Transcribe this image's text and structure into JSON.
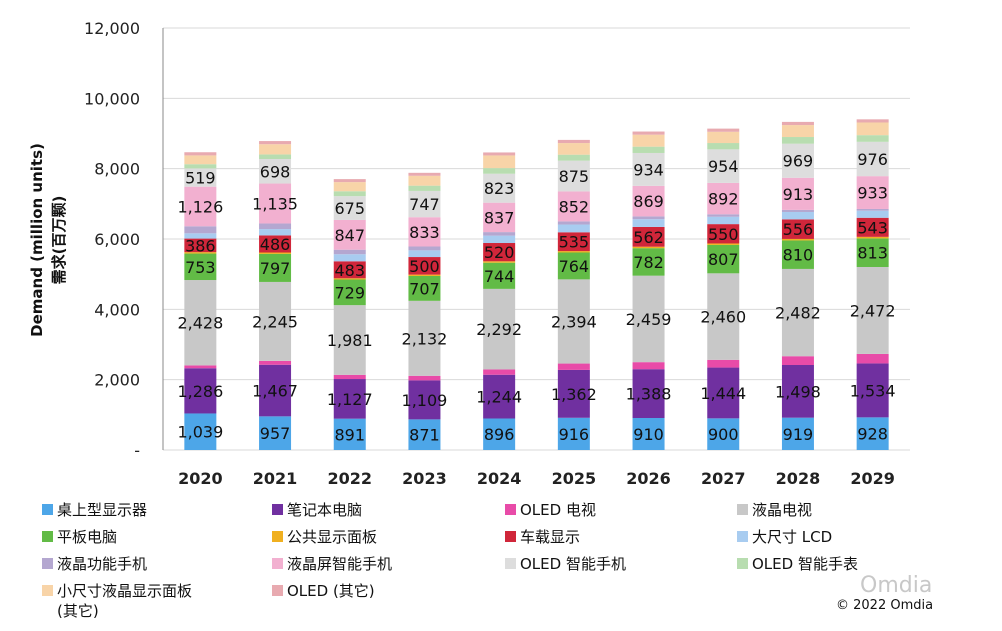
{
  "chart_data": {
    "type": "bar",
    "stacked": true,
    "ylabel": "Demand (million units)",
    "ylabel_cn": "需求(百万颗)",
    "ylim": [
      0,
      12000
    ],
    "yticks": [
      "-",
      "2,000",
      "4,000",
      "6,000",
      "8,000",
      "10,000",
      "12,000"
    ],
    "grid": true,
    "legend_position": "bottom",
    "categories": [
      "2020",
      "2021",
      "2022",
      "2023",
      "2024",
      "2025",
      "2026",
      "2027",
      "2028",
      "2029"
    ],
    "series": [
      {
        "name": "桌上型显示器",
        "color": "#4DA6E8",
        "labeled": true,
        "values": [
          1039,
          957,
          891,
          871,
          896,
          916,
          910,
          900,
          919,
          928
        ]
      },
      {
        "name": "笔记本电脑",
        "color": "#7030A0",
        "labeled": true,
        "values": [
          1286,
          1467,
          1127,
          1109,
          1244,
          1362,
          1388,
          1444,
          1498,
          1534
        ]
      },
      {
        "name": "OLED 电视",
        "color": "#E84BA8",
        "labeled": false,
        "values": [
          80,
          110,
          120,
          130,
          150,
          180,
          200,
          220,
          250,
          270
        ]
      },
      {
        "name": "液晶电视",
        "color": "#C8C8C8",
        "labeled": true,
        "values": [
          2428,
          2245,
          1981,
          2132,
          2292,
          2394,
          2459,
          2460,
          2482,
          2472
        ]
      },
      {
        "name": "平板电脑",
        "color": "#62BB46",
        "labeled": true,
        "values": [
          753,
          797,
          729,
          707,
          744,
          764,
          782,
          807,
          810,
          813
        ]
      },
      {
        "name": "公共显示面板",
        "color": "#F0B020",
        "labeled": false,
        "values": [
          40,
          40,
          35,
          38,
          40,
          40,
          42,
          42,
          43,
          44
        ]
      },
      {
        "name": "车载显示",
        "color": "#D0263A",
        "labeled": true,
        "values": [
          386,
          486,
          483,
          500,
          520,
          535,
          562,
          550,
          556,
          543
        ]
      },
      {
        "name": "大尺寸 LCD",
        "color": "#A8CCF0",
        "labeled": false,
        "values": [
          150,
          180,
          200,
          190,
          210,
          220,
          220,
          210,
          210,
          200
        ]
      },
      {
        "name": "液晶功能手机",
        "color": "#B4A7D0",
        "labeled": false,
        "values": [
          200,
          160,
          130,
          110,
          100,
          90,
          80,
          70,
          60,
          50
        ]
      },
      {
        "name": "液晶屏智能手机",
        "color": "#F2B0D0",
        "labeled": true,
        "values": [
          1126,
          1135,
          847,
          833,
          837,
          852,
          869,
          892,
          913,
          933
        ]
      },
      {
        "name": "OLED 智能手机",
        "color": "#DDDDDD",
        "labeled": true,
        "values": [
          519,
          698,
          675,
          747,
          823,
          875,
          934,
          954,
          969,
          976
        ]
      },
      {
        "name": "OLED 智能手表",
        "color": "#B8DDB0",
        "labeled": false,
        "values": [
          120,
          130,
          140,
          150,
          160,
          170,
          180,
          180,
          190,
          190
        ]
      },
      {
        "name": "小尺寸液晶显示面板 (其它)",
        "color": "#F8D4A8",
        "labeled": false,
        "values": [
          250,
          290,
          260,
          280,
          360,
          330,
          340,
          320,
          340,
          360
        ]
      },
      {
        "name": "OLED (其它)",
        "color": "#E8AAB0",
        "labeled": false,
        "values": [
          90,
          90,
          85,
          85,
          85,
          90,
          90,
          90,
          90,
          90
        ]
      }
    ]
  },
  "legend_rows": [
    [
      "桌上型显示器",
      "笔记本电脑",
      "OLED 电视",
      "液晶电视"
    ],
    [
      "平板电脑",
      "公共显示面板",
      "车载显示",
      "大尺寸 LCD"
    ],
    [
      "液晶功能手机",
      "液晶屏智能手机",
      "OLED 智能手机",
      "OLED 智能手表"
    ],
    [
      "小尺寸液晶显示面板\n(其它)",
      "OLED (其它)"
    ]
  ],
  "watermark": "Omdia",
  "copyright": "© 2022 Omdia"
}
